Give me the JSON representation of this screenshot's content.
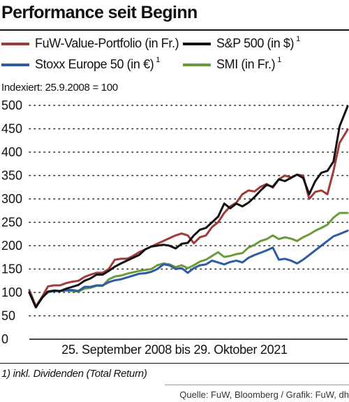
{
  "header": {
    "title": "Performance seit Beginn"
  },
  "legend": [
    {
      "label": "FuW-Value-Portfolio (in Fr.)",
      "note": "",
      "color": "#a23a3a"
    },
    {
      "label": "S&P 500 (in $)",
      "note": "1",
      "color": "#111111"
    },
    {
      "label": "Stoxx Europe 50 (in €)",
      "note": "1",
      "color": "#2e5aa6"
    },
    {
      "label": "SMI (in Fr.)",
      "note": "1",
      "color": "#6a9a3a"
    }
  ],
  "indexed_note": "Indexiert: 25.9.2008 = 100",
  "footnote": "1) inkl. Dividenden (Total Return)",
  "source": "Quelle: FuW, Bloomberg / Grafik: FuW, dh",
  "chart_data": {
    "type": "line",
    "title": "Performance seit Beginn",
    "xlabel": "25.  September 2008 bis 29. Oktober 2021",
    "ylabel": "",
    "ylim": [
      0,
      500
    ],
    "yticks": [
      "0",
      "50",
      "100",
      "150",
      "200",
      "250",
      "300",
      "350",
      "400",
      "450",
      "500"
    ],
    "grid": "horizontal dotted",
    "x": [
      2008.73,
      2009.0,
      2009.25,
      2009.5,
      2009.75,
      2010.0,
      2010.25,
      2010.5,
      2010.75,
      2011.0,
      2011.25,
      2011.5,
      2011.75,
      2012.0,
      2012.25,
      2012.5,
      2012.75,
      2013.0,
      2013.25,
      2013.5,
      2013.75,
      2014.0,
      2014.25,
      2014.5,
      2014.75,
      2015.0,
      2015.25,
      2015.5,
      2015.75,
      2016.0,
      2016.25,
      2016.5,
      2016.75,
      2017.0,
      2017.25,
      2017.5,
      2017.75,
      2018.0,
      2018.25,
      2018.5,
      2018.75,
      2019.0,
      2019.25,
      2019.5,
      2019.75,
      2020.0,
      2020.25,
      2020.5,
      2020.75,
      2021.0,
      2021.25,
      2021.5,
      2021.83
    ],
    "series": [
      {
        "name": "FuW-Value-Portfolio (in Fr.)",
        "color": "#a23a3a",
        "values": [
          105,
          70,
          90,
          113,
          115,
          115,
          120,
          123,
          125,
          133,
          138,
          142,
          142,
          150,
          170,
          172,
          172,
          178,
          186,
          192,
          198,
          204,
          210,
          216,
          222,
          226,
          222,
          205,
          218,
          222,
          240,
          250,
          270,
          284,
          292,
          310,
          318,
          316,
          326,
          332,
          324,
          342,
          350,
          346,
          352,
          350,
          300,
          315,
          318,
          310,
          360,
          420,
          448
        ]
      },
      {
        "name": "S&P 500 (in $)",
        "color": "#111111",
        "values": [
          100,
          68,
          88,
          102,
          104,
          103,
          108,
          112,
          116,
          125,
          130,
          138,
          138,
          146,
          155,
          162,
          168,
          174,
          180,
          192,
          198,
          200,
          202,
          200,
          194,
          204,
          206,
          222,
          234,
          238,
          250,
          262,
          290,
          280,
          290,
          284,
          292,
          304,
          318,
          330,
          326,
          342,
          338,
          345,
          352,
          345,
          310,
          338,
          356,
          360,
          380,
          455,
          498
        ]
      },
      {
        "name": "Stoxx Europe 50 (in €)",
        "color": "#2e5aa6",
        "values": [
          100,
          68,
          88,
          102,
          103,
          103,
          105,
          105,
          103,
          112,
          112,
          115,
          115,
          122,
          126,
          128,
          132,
          136,
          140,
          141,
          144,
          150,
          160,
          158,
          150,
          152,
          142,
          152,
          158,
          160,
          168,
          164,
          160,
          165,
          168,
          164,
          174,
          180,
          185,
          190,
          196,
          170,
          172,
          168,
          162,
          170,
          180,
          190,
          200,
          210,
          220,
          225,
          232
        ]
      },
      {
        "name": "SMI (in Fr.)",
        "color": "#6a9a3a",
        "values": [
          100,
          68,
          90,
          100,
          103,
          103,
          104,
          103,
          102,
          108,
          110,
          114,
          114,
          128,
          134,
          136,
          140,
          143,
          146,
          148,
          150,
          158,
          162,
          160,
          154,
          158,
          152,
          158,
          166,
          170,
          178,
          186,
          176,
          178,
          182,
          184,
          196,
          202,
          210,
          214,
          222,
          214,
          218,
          215,
          210,
          218,
          224,
          232,
          238,
          245,
          260,
          270,
          270
        ]
      }
    ]
  }
}
